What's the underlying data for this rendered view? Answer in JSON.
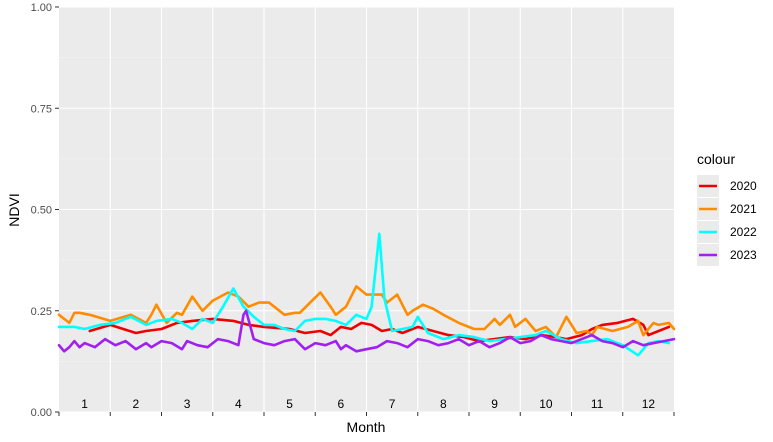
{
  "chart_data": {
    "type": "line",
    "xlabel": "Month",
    "ylabel": "NDVI",
    "ylim": [
      0,
      1
    ],
    "xlim": [
      0.5,
      12.5
    ],
    "y_ticks": [
      "0.00",
      "0.25",
      "0.50",
      "0.75",
      "1.00"
    ],
    "y_tick_values": [
      0,
      0.25,
      0.5,
      0.75,
      1
    ],
    "month_labels": [
      "1",
      "2",
      "3",
      "4",
      "5",
      "6",
      "7",
      "8",
      "9",
      "10",
      "11",
      "12"
    ],
    "grid": true,
    "legend": {
      "title": "colour",
      "position": "right"
    },
    "series": [
      {
        "name": "2020",
        "color": "#ee0000",
        "x": [
          1.1,
          1.5,
          2.0,
          2.2,
          2.5,
          2.8,
          3.1,
          3.5,
          3.9,
          4.2,
          4.5,
          5.0,
          5.3,
          5.6,
          5.8,
          6.0,
          6.2,
          6.4,
          6.6,
          6.8,
          7.0,
          7.2,
          7.5,
          7.8,
          8.1,
          8.4,
          8.7,
          9.0,
          9.3,
          9.6,
          9.9,
          10.2,
          10.4,
          10.7,
          10.9,
          11.1,
          11.4,
          11.7,
          11.9,
          12.0,
          12.2,
          12.4
        ],
        "y": [
          0.2,
          0.215,
          0.195,
          0.2,
          0.205,
          0.22,
          0.225,
          0.23,
          0.225,
          0.215,
          0.21,
          0.205,
          0.195,
          0.2,
          0.19,
          0.21,
          0.205,
          0.22,
          0.215,
          0.2,
          0.205,
          0.195,
          0.21,
          0.2,
          0.19,
          0.185,
          0.175,
          0.18,
          0.185,
          0.18,
          0.19,
          0.185,
          0.18,
          0.19,
          0.205,
          0.215,
          0.22,
          0.23,
          0.215,
          0.19,
          0.2,
          0.21
        ]
      },
      {
        "name": "2021",
        "color": "#ff8c00",
        "x": [
          0.5,
          0.7,
          0.8,
          0.9,
          1.1,
          1.5,
          1.9,
          2.2,
          2.3,
          2.4,
          2.6,
          2.8,
          2.9,
          3.1,
          3.3,
          3.5,
          3.8,
          4.0,
          4.2,
          4.4,
          4.6,
          4.9,
          5.1,
          5.2,
          5.4,
          5.6,
          5.8,
          5.9,
          6.1,
          6.3,
          6.5,
          6.6,
          6.7,
          6.8,
          6.9,
          7.0,
          7.1,
          7.3,
          7.4,
          7.6,
          7.8,
          8.0,
          8.3,
          8.6,
          8.8,
          9.0,
          9.1,
          9.3,
          9.4,
          9.6,
          9.8,
          10.0,
          10.2,
          10.4,
          10.6,
          10.8,
          10.9,
          11.0,
          11.3,
          11.6,
          11.8,
          11.9,
          12.1,
          12.2,
          12.4,
          12.5
        ],
        "y": [
          0.24,
          0.22,
          0.245,
          0.245,
          0.24,
          0.225,
          0.24,
          0.22,
          0.24,
          0.265,
          0.22,
          0.245,
          0.24,
          0.285,
          0.25,
          0.275,
          0.295,
          0.285,
          0.26,
          0.27,
          0.27,
          0.24,
          0.245,
          0.245,
          0.27,
          0.295,
          0.26,
          0.24,
          0.26,
          0.31,
          0.29,
          0.29,
          0.29,
          0.29,
          0.27,
          0.28,
          0.29,
          0.24,
          0.25,
          0.265,
          0.255,
          0.24,
          0.22,
          0.205,
          0.205,
          0.23,
          0.215,
          0.24,
          0.21,
          0.23,
          0.2,
          0.21,
          0.185,
          0.235,
          0.195,
          0.2,
          0.19,
          0.21,
          0.2,
          0.21,
          0.225,
          0.19,
          0.22,
          0.215,
          0.22,
          0.205
        ]
      },
      {
        "name": "2022",
        "color": "#00ffff",
        "x": [
          0.5,
          0.8,
          1.0,
          1.3,
          1.6,
          1.9,
          2.2,
          2.4,
          2.7,
          2.9,
          3.1,
          3.3,
          3.5,
          3.7,
          3.9,
          4.1,
          4.3,
          4.5,
          4.7,
          4.9,
          5.1,
          5.3,
          5.5,
          5.7,
          5.9,
          6.1,
          6.3,
          6.5,
          6.6,
          6.75,
          6.85,
          7.0,
          7.2,
          7.4,
          7.5,
          7.7,
          8.0,
          8.3,
          8.6,
          8.9,
          9.2,
          9.5,
          9.8,
          10.0,
          10.3,
          10.6,
          10.9,
          11.2,
          11.5,
          11.8,
          12.0,
          12.2,
          12.4
        ],
        "y": [
          0.21,
          0.21,
          0.205,
          0.215,
          0.22,
          0.235,
          0.215,
          0.225,
          0.23,
          0.22,
          0.205,
          0.23,
          0.22,
          0.26,
          0.305,
          0.26,
          0.235,
          0.215,
          0.215,
          0.205,
          0.2,
          0.225,
          0.23,
          0.23,
          0.225,
          0.215,
          0.24,
          0.23,
          0.26,
          0.44,
          0.28,
          0.2,
          0.205,
          0.21,
          0.235,
          0.195,
          0.18,
          0.19,
          0.185,
          0.175,
          0.18,
          0.185,
          0.19,
          0.2,
          0.18,
          0.17,
          0.175,
          0.18,
          0.165,
          0.14,
          0.17,
          0.175,
          0.17
        ]
      },
      {
        "name": "2023",
        "color": "#a020f0",
        "x": [
          0.5,
          0.6,
          0.7,
          0.8,
          0.9,
          1.0,
          1.2,
          1.4,
          1.6,
          1.8,
          2.0,
          2.2,
          2.3,
          2.5,
          2.7,
          2.9,
          3.0,
          3.2,
          3.4,
          3.6,
          3.8,
          4.0,
          4.1,
          4.15,
          4.3,
          4.5,
          4.7,
          4.9,
          5.1,
          5.3,
          5.5,
          5.7,
          5.9,
          6.0,
          6.1,
          6.3,
          6.5,
          6.7,
          6.9,
          7.1,
          7.3,
          7.5,
          7.7,
          7.9,
          8.1,
          8.3,
          8.5,
          8.7,
          8.9,
          9.1,
          9.3,
          9.5,
          9.7,
          9.9,
          10.1,
          10.3,
          10.5,
          10.7,
          10.9,
          11.1,
          11.3,
          11.5,
          11.7,
          11.9,
          12.1,
          12.3,
          12.5
        ],
        "y": [
          0.165,
          0.15,
          0.16,
          0.175,
          0.16,
          0.17,
          0.16,
          0.18,
          0.165,
          0.175,
          0.155,
          0.17,
          0.16,
          0.175,
          0.17,
          0.155,
          0.175,
          0.165,
          0.16,
          0.18,
          0.175,
          0.165,
          0.24,
          0.25,
          0.18,
          0.17,
          0.165,
          0.175,
          0.18,
          0.155,
          0.17,
          0.165,
          0.175,
          0.155,
          0.165,
          0.15,
          0.155,
          0.16,
          0.175,
          0.17,
          0.16,
          0.18,
          0.175,
          0.165,
          0.17,
          0.18,
          0.165,
          0.175,
          0.16,
          0.17,
          0.185,
          0.17,
          0.175,
          0.19,
          0.18,
          0.175,
          0.17,
          0.18,
          0.19,
          0.175,
          0.17,
          0.16,
          0.175,
          0.165,
          0.17,
          0.175,
          0.18
        ]
      }
    ]
  }
}
